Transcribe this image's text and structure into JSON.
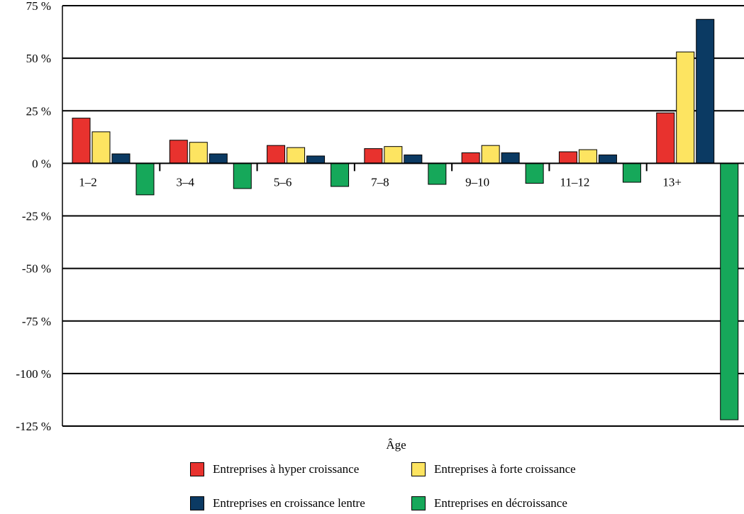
{
  "chart_data": {
    "type": "bar",
    "title": "",
    "xlabel": "Âge",
    "ylabel": "",
    "categories": [
      "1–2",
      "3–4",
      "5–6",
      "7–8",
      "9–10",
      "11–12",
      "13+"
    ],
    "yticks": [
      75,
      50,
      25,
      0,
      -25,
      -50,
      -75,
      -100,
      -125
    ],
    "ytick_labels": [
      "75 %",
      "50 %",
      "25 %",
      "0 %",
      "-25 %",
      "-50 %",
      "-75 %",
      "-100 %",
      "-125 %"
    ],
    "ylim": [
      -125,
      75
    ],
    "grid": true,
    "legend_position": "bottom",
    "series": [
      {
        "name": "Entreprises à hyper croissance",
        "color": "#e8322e",
        "values": [
          21.5,
          11,
          8.5,
          7,
          5,
          5.5,
          24
        ]
      },
      {
        "name": "Entreprises à forte croissance",
        "color": "#fde461",
        "values": [
          15,
          10,
          7.5,
          8,
          8.5,
          6.5,
          53
        ]
      },
      {
        "name": "Entreprises en croissance lentre",
        "color": "#0b3a63",
        "values": [
          4.5,
          4.5,
          3.5,
          4,
          5,
          4,
          68.5
        ]
      },
      {
        "name": "Entreprises en décroissance",
        "color": "#16a85a",
        "values": [
          -15,
          -12,
          -11,
          -10,
          -9.5,
          -9,
          -122
        ]
      }
    ]
  }
}
